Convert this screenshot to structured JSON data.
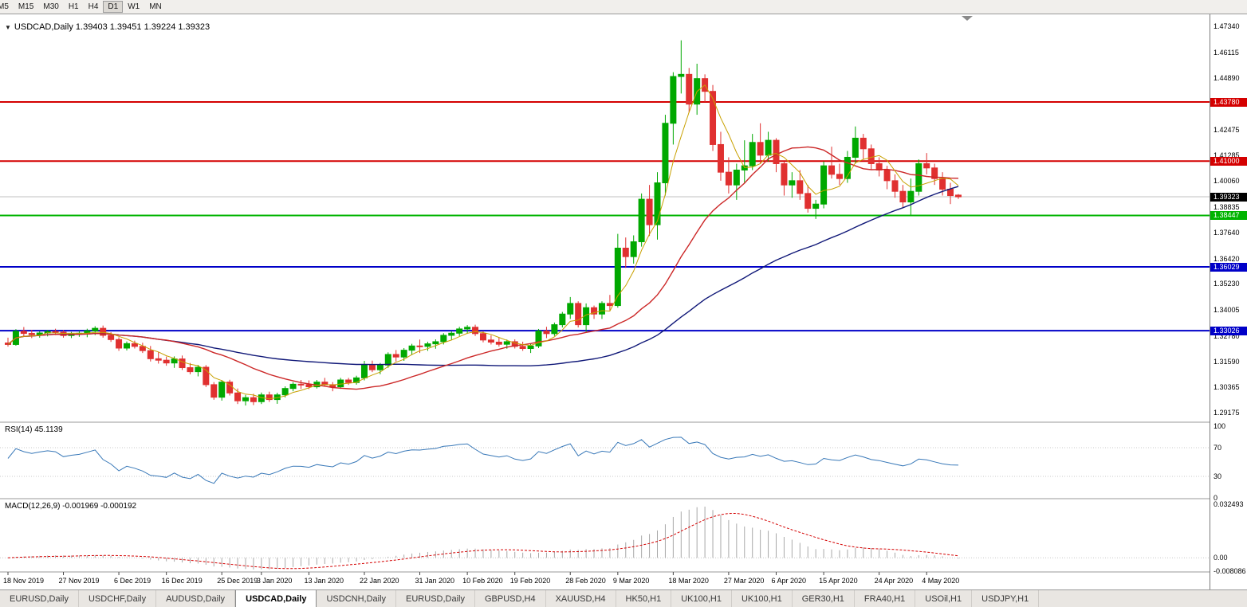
{
  "toolbar": {
    "timeframes": [
      "M5",
      "M15",
      "M30",
      "H1",
      "H4",
      "D1",
      "W1",
      "MN"
    ],
    "active": "D1"
  },
  "chart": {
    "title": "USDCAD,Daily 1.39403 1.39451 1.39224 1.39323",
    "rsi_label": "RSI(14) 45.1139",
    "macd_label": "MACD(12,26,9) -0.001969 -0.000192"
  },
  "chart_data": {
    "type": "candlestick",
    "symbol": "USDCAD",
    "timeframe": "Daily",
    "ohlc_display": {
      "open": "1.39403",
      "high": "1.39451",
      "low": "1.39224",
      "close": "1.39323"
    },
    "y_axis": {
      "min": 1.29175,
      "max": 1.4734,
      "ticks": [
        "1.47340",
        "1.46115",
        "1.44890",
        "1.42475",
        "1.41285",
        "1.40060",
        "1.38835",
        "1.37640",
        "1.36420",
        "1.35230",
        "1.34005",
        "1.32780",
        "1.31590",
        "1.30365",
        "1.29175"
      ]
    },
    "hlines": [
      {
        "price": 1.4378,
        "label": "1.43780",
        "color": "#d40000"
      },
      {
        "price": 1.41,
        "label": "1.41000",
        "color": "#d40000"
      },
      {
        "price": 1.38447,
        "label": "1.38447",
        "color": "#00b400"
      },
      {
        "price": 1.36029,
        "label": "1.36029",
        "color": "#0000c8"
      },
      {
        "price": 1.33026,
        "label": "1.33026",
        "color": "#0000c8"
      }
    ],
    "current_price": {
      "price": 1.39323,
      "label": "1.39323",
      "color": "#000000"
    },
    "colors": {
      "up": "#00a800",
      "down": "#e03030",
      "ma_fast": "#c8a000",
      "ma_mid": "#cc2828",
      "ma_slow": "#101878",
      "rsi": "#3878b8",
      "rsi_levels": "#c8c8c8",
      "macd_hist": "#a8a8a8",
      "macd_signal": "#d40000",
      "current_line": "#c0c0c0",
      "separator": "#9a9a9a"
    },
    "moving_averages": [
      {
        "period": 5
      },
      {
        "period": 20
      },
      {
        "period": 50
      }
    ],
    "x_labels": [
      {
        "text": "18 Nov 2019",
        "i": 0
      },
      {
        "text": "27 Nov 2019",
        "i": 7
      },
      {
        "text": "6 Dec 2019",
        "i": 14
      },
      {
        "text": "16 Dec 2019",
        "i": 20
      },
      {
        "text": "25 Dec 2019",
        "i": 27
      },
      {
        "text": "3 Jan 2020",
        "i": 32
      },
      {
        "text": "13 Jan 2020",
        "i": 38
      },
      {
        "text": "22 Jan 2020",
        "i": 45
      },
      {
        "text": "31 Jan 2020",
        "i": 52
      },
      {
        "text": "10 Feb 2020",
        "i": 58
      },
      {
        "text": "19 Feb 2020",
        "i": 64
      },
      {
        "text": "28 Feb 2020",
        "i": 71
      },
      {
        "text": "9 Mar 2020",
        "i": 77
      },
      {
        "text": "18 Mar 2020",
        "i": 84
      },
      {
        "text": "27 Mar 2020",
        "i": 91
      },
      {
        "text": "6 Apr 2020",
        "i": 97
      },
      {
        "text": "15 Apr 2020",
        "i": 103
      },
      {
        "text": "24 Apr 2020",
        "i": 110
      },
      {
        "text": "4 May 2020",
        "i": 116
      }
    ],
    "candles": [
      [
        1.3245,
        1.327,
        1.3228,
        1.3238
      ],
      [
        1.3238,
        1.331,
        1.3232,
        1.33
      ],
      [
        1.33,
        1.332,
        1.3278,
        1.329
      ],
      [
        1.329,
        1.3307,
        1.3268,
        1.3284
      ],
      [
        1.3284,
        1.33,
        1.327,
        1.3292
      ],
      [
        1.3292,
        1.3306,
        1.3276,
        1.3299
      ],
      [
        1.3299,
        1.3312,
        1.3282,
        1.3296
      ],
      [
        1.3296,
        1.3305,
        1.327,
        1.328
      ],
      [
        1.328,
        1.3297,
        1.3268,
        1.3287
      ],
      [
        1.3287,
        1.3302,
        1.3274,
        1.3291
      ],
      [
        1.3291,
        1.3312,
        1.3272,
        1.3302
      ],
      [
        1.3302,
        1.3324,
        1.3282,
        1.3314
      ],
      [
        1.3314,
        1.3327,
        1.327,
        1.3281
      ],
      [
        1.3281,
        1.3296,
        1.325,
        1.3261
      ],
      [
        1.3261,
        1.3272,
        1.3208,
        1.3221
      ],
      [
        1.3221,
        1.3252,
        1.321,
        1.3242
      ],
      [
        1.3242,
        1.3256,
        1.3219,
        1.3229
      ],
      [
        1.3229,
        1.3246,
        1.3198,
        1.3209
      ],
      [
        1.3209,
        1.3231,
        1.3158,
        1.3171
      ],
      [
        1.3171,
        1.3202,
        1.3148,
        1.3164
      ],
      [
        1.3164,
        1.3181,
        1.3138,
        1.3151
      ],
      [
        1.3151,
        1.3182,
        1.3128,
        1.317
      ],
      [
        1.317,
        1.3186,
        1.3118,
        1.3129
      ],
      [
        1.3129,
        1.3151,
        1.3098,
        1.311
      ],
      [
        1.311,
        1.3142,
        1.3088,
        1.3131
      ],
      [
        1.3131,
        1.3141,
        1.3038,
        1.3049
      ],
      [
        1.3049,
        1.3061,
        1.2978,
        1.299
      ],
      [
        1.299,
        1.3071,
        1.2974,
        1.3061
      ],
      [
        1.3061,
        1.3072,
        1.2998,
        1.301
      ],
      [
        1.301,
        1.3031,
        1.2958,
        1.2973
      ],
      [
        1.2973,
        1.3001,
        1.2951,
        1.2988
      ],
      [
        1.2988,
        1.3006,
        1.2953,
        1.2969
      ],
      [
        1.2969,
        1.3012,
        1.2958,
        1.3001
      ],
      [
        1.3001,
        1.3016,
        1.2968,
        1.2979
      ],
      [
        1.2979,
        1.3011,
        1.2959,
        1.3001
      ],
      [
        1.3001,
        1.3041,
        1.2989,
        1.3031
      ],
      [
        1.3031,
        1.3061,
        1.3018,
        1.3051
      ],
      [
        1.3051,
        1.3071,
        1.3029,
        1.3049
      ],
      [
        1.3049,
        1.3069,
        1.3028,
        1.3039
      ],
      [
        1.3039,
        1.3071,
        1.3031,
        1.3061
      ],
      [
        1.3061,
        1.3081,
        1.3039,
        1.3049
      ],
      [
        1.3049,
        1.3061,
        1.3018,
        1.3039
      ],
      [
        1.3039,
        1.3081,
        1.3029,
        1.3071
      ],
      [
        1.3071,
        1.3081,
        1.3048,
        1.3059
      ],
      [
        1.3059,
        1.3091,
        1.3049,
        1.3081
      ],
      [
        1.3081,
        1.3161,
        1.3069,
        1.3141
      ],
      [
        1.3141,
        1.3162,
        1.3108,
        1.3119
      ],
      [
        1.3119,
        1.3151,
        1.3098,
        1.3141
      ],
      [
        1.3141,
        1.3201,
        1.3128,
        1.3191
      ],
      [
        1.3191,
        1.3212,
        1.3158,
        1.3179
      ],
      [
        1.3179,
        1.3221,
        1.3161,
        1.3211
      ],
      [
        1.3211,
        1.3241,
        1.3188,
        1.3231
      ],
      [
        1.3231,
        1.3261,
        1.3198,
        1.3229
      ],
      [
        1.3229,
        1.3251,
        1.3208,
        1.3241
      ],
      [
        1.3241,
        1.3262,
        1.3218,
        1.3251
      ],
      [
        1.3251,
        1.3291,
        1.3238,
        1.3281
      ],
      [
        1.3281,
        1.3301,
        1.3258,
        1.3291
      ],
      [
        1.3291,
        1.3321,
        1.3278,
        1.3311
      ],
      [
        1.3311,
        1.3329,
        1.3288,
        1.3319
      ],
      [
        1.3319,
        1.3331,
        1.3278,
        1.3289
      ],
      [
        1.3289,
        1.3301,
        1.3248,
        1.3259
      ],
      [
        1.3259,
        1.3281,
        1.3238,
        1.3249
      ],
      [
        1.3249,
        1.3271,
        1.3228,
        1.3239
      ],
      [
        1.3239,
        1.3261,
        1.3218,
        1.3251
      ],
      [
        1.3251,
        1.3262,
        1.3219,
        1.3229
      ],
      [
        1.3229,
        1.3251,
        1.3208,
        1.3219
      ],
      [
        1.3219,
        1.3241,
        1.3198,
        1.3231
      ],
      [
        1.3231,
        1.3311,
        1.3221,
        1.3301
      ],
      [
        1.3301,
        1.3321,
        1.3268,
        1.3289
      ],
      [
        1.3289,
        1.3341,
        1.3278,
        1.3331
      ],
      [
        1.3331,
        1.3391,
        1.3318,
        1.3381
      ],
      [
        1.3381,
        1.3461,
        1.3358,
        1.3431
      ],
      [
        1.3431,
        1.3441,
        1.3318,
        1.3331
      ],
      [
        1.3331,
        1.3431,
        1.3298,
        1.3411
      ],
      [
        1.3411,
        1.3421,
        1.3358,
        1.3381
      ],
      [
        1.3381,
        1.3441,
        1.3358,
        1.3431
      ],
      [
        1.3431,
        1.3471,
        1.3398,
        1.3421
      ],
      [
        1.3421,
        1.3758,
        1.3411,
        1.3691
      ],
      [
        1.3691,
        1.3741,
        1.3598,
        1.3651
      ],
      [
        1.3651,
        1.3751,
        1.3618,
        1.3721
      ],
      [
        1.3721,
        1.3948,
        1.3698,
        1.3921
      ],
      [
        1.3921,
        1.3988,
        1.3748,
        1.3801
      ],
      [
        1.3801,
        1.4048,
        1.3731,
        1.3998
      ],
      [
        1.3998,
        1.4318,
        1.3938,
        1.4278
      ],
      [
        1.4278,
        1.4518,
        1.4178,
        1.4498
      ],
      [
        1.4498,
        1.4668,
        1.4418,
        1.4508
      ],
      [
        1.4508,
        1.4538,
        1.4328,
        1.4368
      ],
      [
        1.4368,
        1.4558,
        1.4318,
        1.4488
      ],
      [
        1.4488,
        1.4508,
        1.4378,
        1.4428
      ],
      [
        1.4428,
        1.4458,
        1.4148,
        1.4178
      ],
      [
        1.4178,
        1.4238,
        1.4008,
        1.4048
      ],
      [
        1.4048,
        1.4118,
        1.3948,
        1.3988
      ],
      [
        1.3988,
        1.4088,
        1.3918,
        1.4058
      ],
      [
        1.4058,
        1.4198,
        1.3998,
        1.4078
      ],
      [
        1.4078,
        1.4228,
        1.4058,
        1.4188
      ],
      [
        1.4188,
        1.4278,
        1.4088,
        1.4128
      ],
      [
        1.4128,
        1.4238,
        1.4098,
        1.4198
      ],
      [
        1.4198,
        1.4208,
        1.4048,
        1.4088
      ],
      [
        1.4088,
        1.4098,
        1.3938,
        1.3988
      ],
      [
        1.3988,
        1.4048,
        1.3928,
        1.4008
      ],
      [
        1.4008,
        1.4058,
        1.3918,
        1.3948
      ],
      [
        1.3948,
        1.3988,
        1.3858,
        1.3878
      ],
      [
        1.3878,
        1.3918,
        1.3828,
        1.3898
      ],
      [
        1.3898,
        1.4098,
        1.3878,
        1.4078
      ],
      [
        1.4078,
        1.4168,
        1.4018,
        1.4038
      ],
      [
        1.4038,
        1.4088,
        1.3988,
        1.4018
      ],
      [
        1.4018,
        1.4148,
        1.3998,
        1.4118
      ],
      [
        1.4118,
        1.4263,
        1.4088,
        1.4208
      ],
      [
        1.4208,
        1.4228,
        1.4108,
        1.4158
      ],
      [
        1.4158,
        1.4178,
        1.4058,
        1.4088
      ],
      [
        1.4088,
        1.4118,
        1.4028,
        1.4058
      ],
      [
        1.4058,
        1.4078,
        1.3968,
        1.4008
      ],
      [
        1.4008,
        1.4038,
        1.3928,
        1.3958
      ],
      [
        1.3958,
        1.3988,
        1.3878,
        1.3908
      ],
      [
        1.3908,
        1.4018,
        1.3848,
        1.3958
      ],
      [
        1.3958,
        1.4108,
        1.3938,
        1.4088
      ],
      [
        1.4088,
        1.4138,
        1.4038,
        1.4068
      ],
      [
        1.4068,
        1.4088,
        1.3988,
        1.4018
      ],
      [
        1.4018,
        1.4048,
        1.3938,
        1.3968
      ],
      [
        1.3968,
        1.3998,
        1.3898,
        1.3938
      ],
      [
        1.39403,
        1.39451,
        1.39224,
        1.39323
      ]
    ],
    "rsi": {
      "period": 14,
      "levels": [
        "100",
        "70",
        "30",
        "0"
      ],
      "last": 45.1139
    },
    "macd": {
      "fast": 12,
      "slow": 26,
      "signal": 9,
      "axis": [
        "0.032493",
        "0.00",
        "-0.008086"
      ],
      "values_display": [
        "-0.001969",
        "-0.000192"
      ]
    }
  },
  "bottom_tabs": {
    "active_index": 3,
    "tabs": [
      "EURUSD,Daily",
      "USDCHF,Daily",
      "AUDUSD,Daily",
      "USDCAD,Daily",
      "USDCNH,Daily",
      "EURUSD,Daily",
      "GBPUSD,H4",
      "XAUUSD,H4",
      "HK50,H1",
      "UK100,H1",
      "UK100,H1",
      "GER30,H1",
      "FRA40,H1",
      "USOil,H1",
      "USDJPY,H1"
    ]
  }
}
